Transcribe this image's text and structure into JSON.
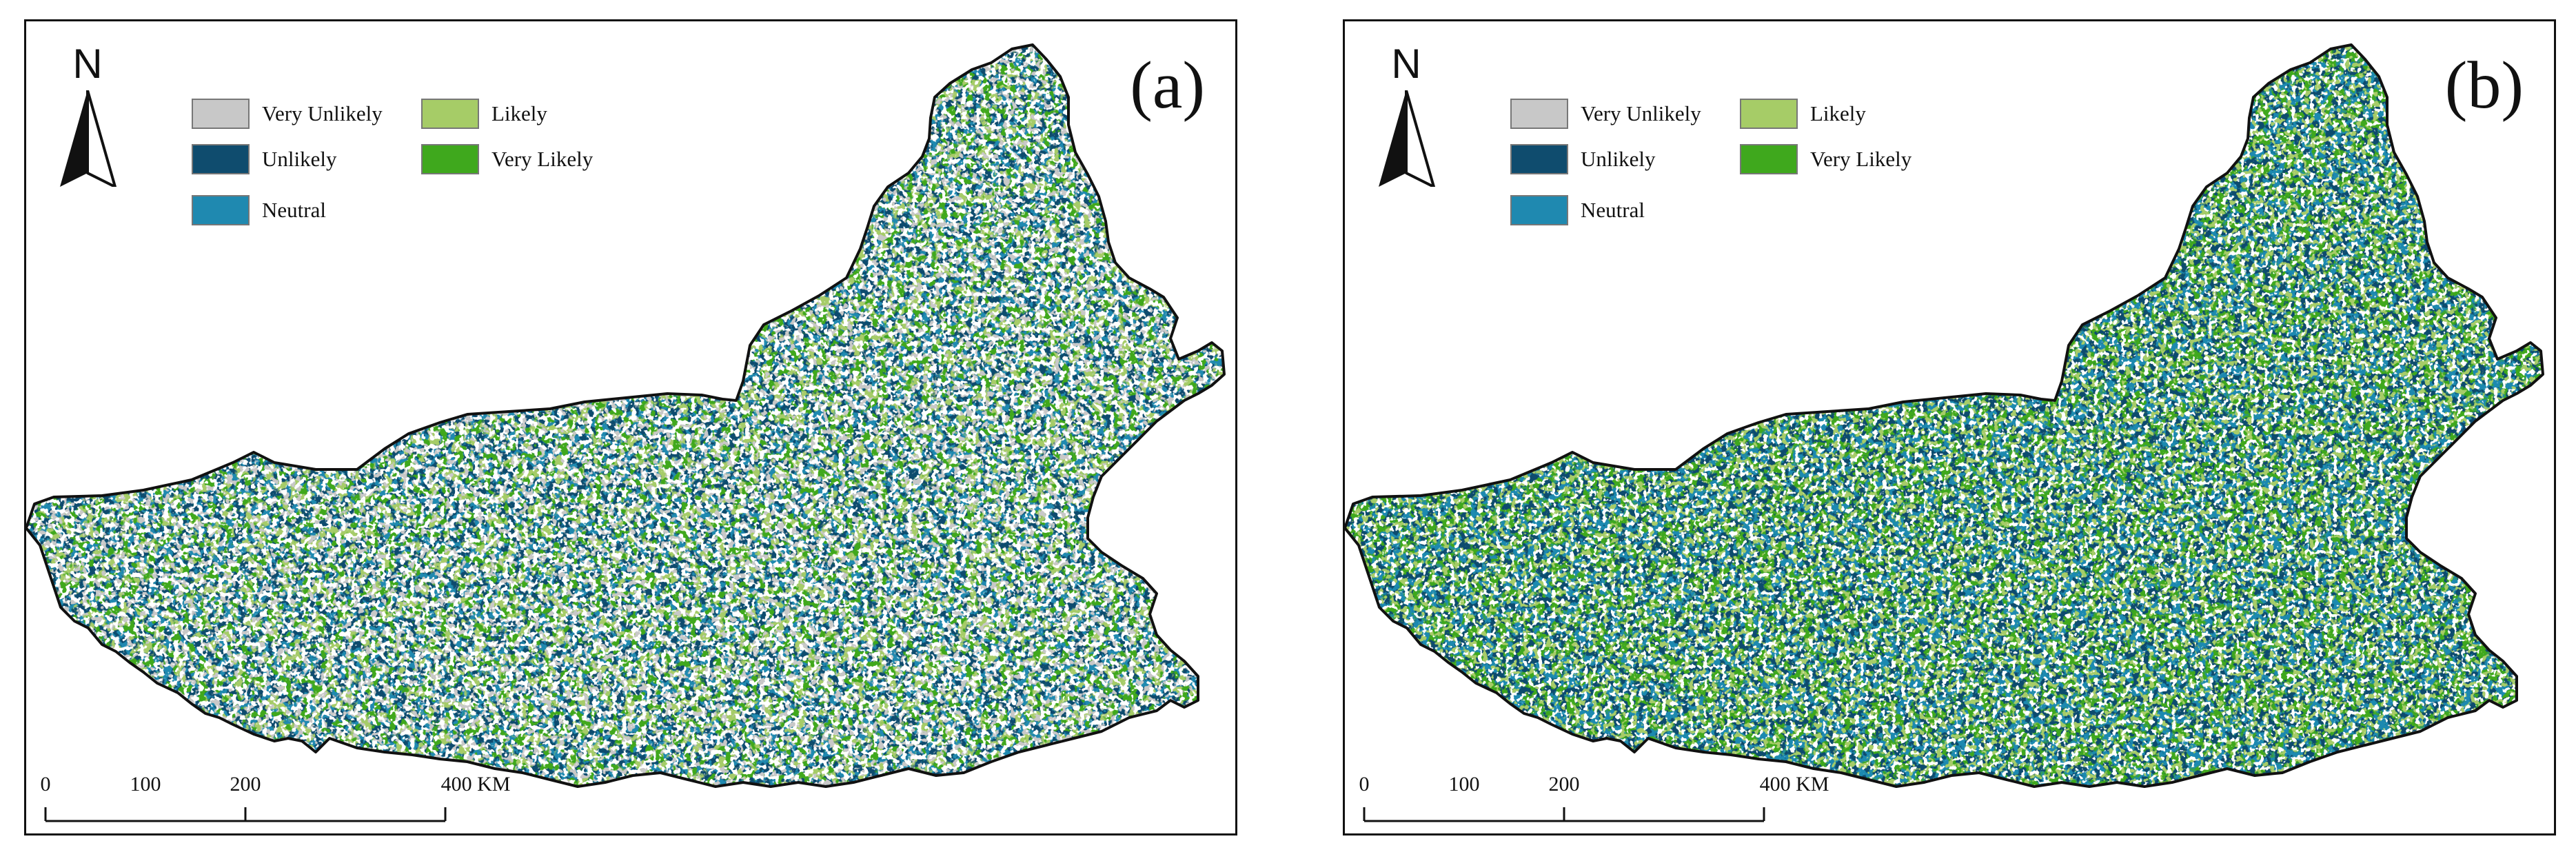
{
  "panels": [
    {
      "id": "a",
      "label": "(a)",
      "north_label": "N",
      "legend": [
        {
          "label": "Very Unlikely",
          "color": "#c8c8c8"
        },
        {
          "label": "Unlikely",
          "color": "#0f4c6e"
        },
        {
          "label": "Neutral",
          "color": "#1f89b0"
        },
        {
          "label": "Likely",
          "color": "#a6cc67"
        },
        {
          "label": "Very Likely",
          "color": "#3fa81d"
        }
      ],
      "scale_ticks": [
        "0",
        "100",
        "200",
        "400 KM"
      ],
      "dominant_colors": [
        "#1f89b0",
        "#0f4c6e",
        "#a6cc67",
        "#c8c8c8",
        "#3fa81d"
      ]
    },
    {
      "id": "b",
      "label": "(b)",
      "north_label": "N",
      "legend": [
        {
          "label": "Very Unlikely",
          "color": "#c8c8c8"
        },
        {
          "label": "Unlikely",
          "color": "#0f4c6e"
        },
        {
          "label": "Neutral",
          "color": "#1f89b0"
        },
        {
          "label": "Likely",
          "color": "#a6cc67"
        },
        {
          "label": "Very Likely",
          "color": "#3fa81d"
        }
      ],
      "scale_ticks": [
        "0",
        "100",
        "200",
        "400 KM"
      ],
      "dominant_colors": [
        "#3fa81d",
        "#1f89b0",
        "#0f4c6e",
        "#a6cc67",
        "#c8c8c8"
      ]
    }
  ]
}
